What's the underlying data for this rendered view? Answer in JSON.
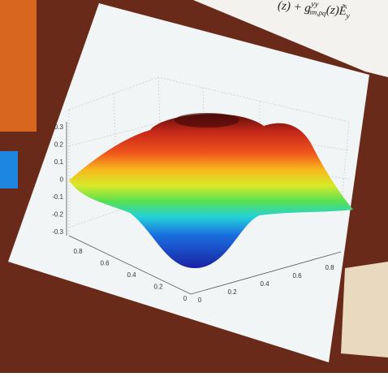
{
  "formula": {
    "lead": "(z) + g",
    "sup": "yy",
    "sub": "nm,pq",
    "tail": "(z)Ẽ",
    "tail_sub": "y"
  },
  "plot": {
    "z_ticks": [
      "0.3",
      "0.2",
      "0.1",
      "0",
      "-0.1",
      "-0.2",
      "-0.3"
    ],
    "left_ticks": [
      "0.8",
      "0.6",
      "0.4",
      "0.2",
      "0"
    ],
    "right_ticks": [
      "0",
      "0.2",
      "0.4",
      "0.6",
      "0.8"
    ]
  }
}
